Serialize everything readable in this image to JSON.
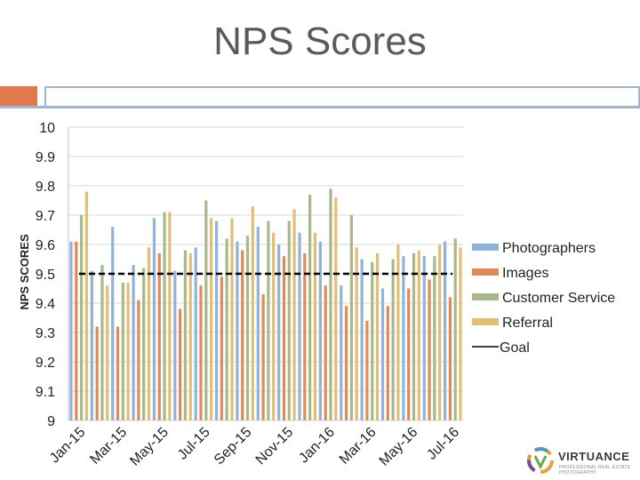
{
  "slide": {
    "title": "NPS Scores"
  },
  "logo": {
    "name": "VIRTUANCE",
    "tagline": "PROFESSIONAL REAL ESTATE PHOTOGRAPHY"
  },
  "colors": {
    "accent_orange": "#e07a4a",
    "accent_blue": "#9fb6d3"
  },
  "chart_data": {
    "type": "bar",
    "title": "",
    "xlabel": "",
    "ylabel": "NPS SCORES",
    "ylim": [
      9,
      10
    ],
    "yticks": [
      "10",
      "9.9",
      "9.8",
      "9.7",
      "9.6",
      "9.5",
      "9.4",
      "9.3",
      "9.2",
      "9.1",
      "9"
    ],
    "grid": true,
    "legend_position": "right",
    "categories": [
      "Jan-15",
      "Feb-15",
      "Mar-15",
      "Apr-15",
      "May-15",
      "Jun-15",
      "Jul-15",
      "Aug-15",
      "Sep-15",
      "Oct-15",
      "Nov-15",
      "Dec-15",
      "Jan-16",
      "Feb-16",
      "Mar-16",
      "Apr-16",
      "May-16",
      "Jun-16",
      "Jul-16"
    ],
    "xtick_labels": [
      "Jan-15",
      "",
      "Mar-15",
      "",
      "May-15",
      "",
      "Jul-15",
      "",
      "Sep-15",
      "",
      "Nov-15",
      "",
      "Jan-16",
      "",
      "Mar-16",
      "",
      "May-16",
      "",
      "Jul-16"
    ],
    "series": [
      {
        "name": "Photographers",
        "color": "#8fb3d9",
        "values": [
          9.61,
          9.51,
          9.66,
          9.53,
          9.69,
          9.51,
          9.59,
          9.68,
          9.61,
          9.66,
          9.6,
          9.64,
          9.61,
          9.46,
          9.55,
          9.45,
          9.56,
          9.56,
          9.61
        ]
      },
      {
        "name": "Images",
        "color": "#e08a5a",
        "values": [
          9.61,
          9.32,
          9.32,
          9.41,
          9.57,
          9.38,
          9.46,
          9.49,
          9.58,
          9.43,
          9.56,
          9.57,
          9.46,
          9.39,
          9.34,
          9.39,
          9.45,
          9.48,
          9.42
        ]
      },
      {
        "name": "Customer Service",
        "color": "#a8b88a",
        "values": [
          9.7,
          9.53,
          9.47,
          9.52,
          9.71,
          9.58,
          9.75,
          9.62,
          9.63,
          9.68,
          9.68,
          9.77,
          9.79,
          9.7,
          9.54,
          9.55,
          9.57,
          9.56,
          9.62
        ]
      },
      {
        "name": "Referral",
        "color": "#e3be72",
        "values": [
          9.78,
          9.46,
          9.47,
          9.59,
          9.71,
          9.57,
          9.69,
          9.69,
          9.73,
          9.64,
          9.72,
          9.64,
          9.76,
          9.59,
          9.57,
          9.6,
          9.58,
          9.6,
          9.59
        ]
      }
    ],
    "goal": {
      "name": "Goal",
      "value": 9.5,
      "style": "dashed",
      "color": "#000000"
    }
  }
}
